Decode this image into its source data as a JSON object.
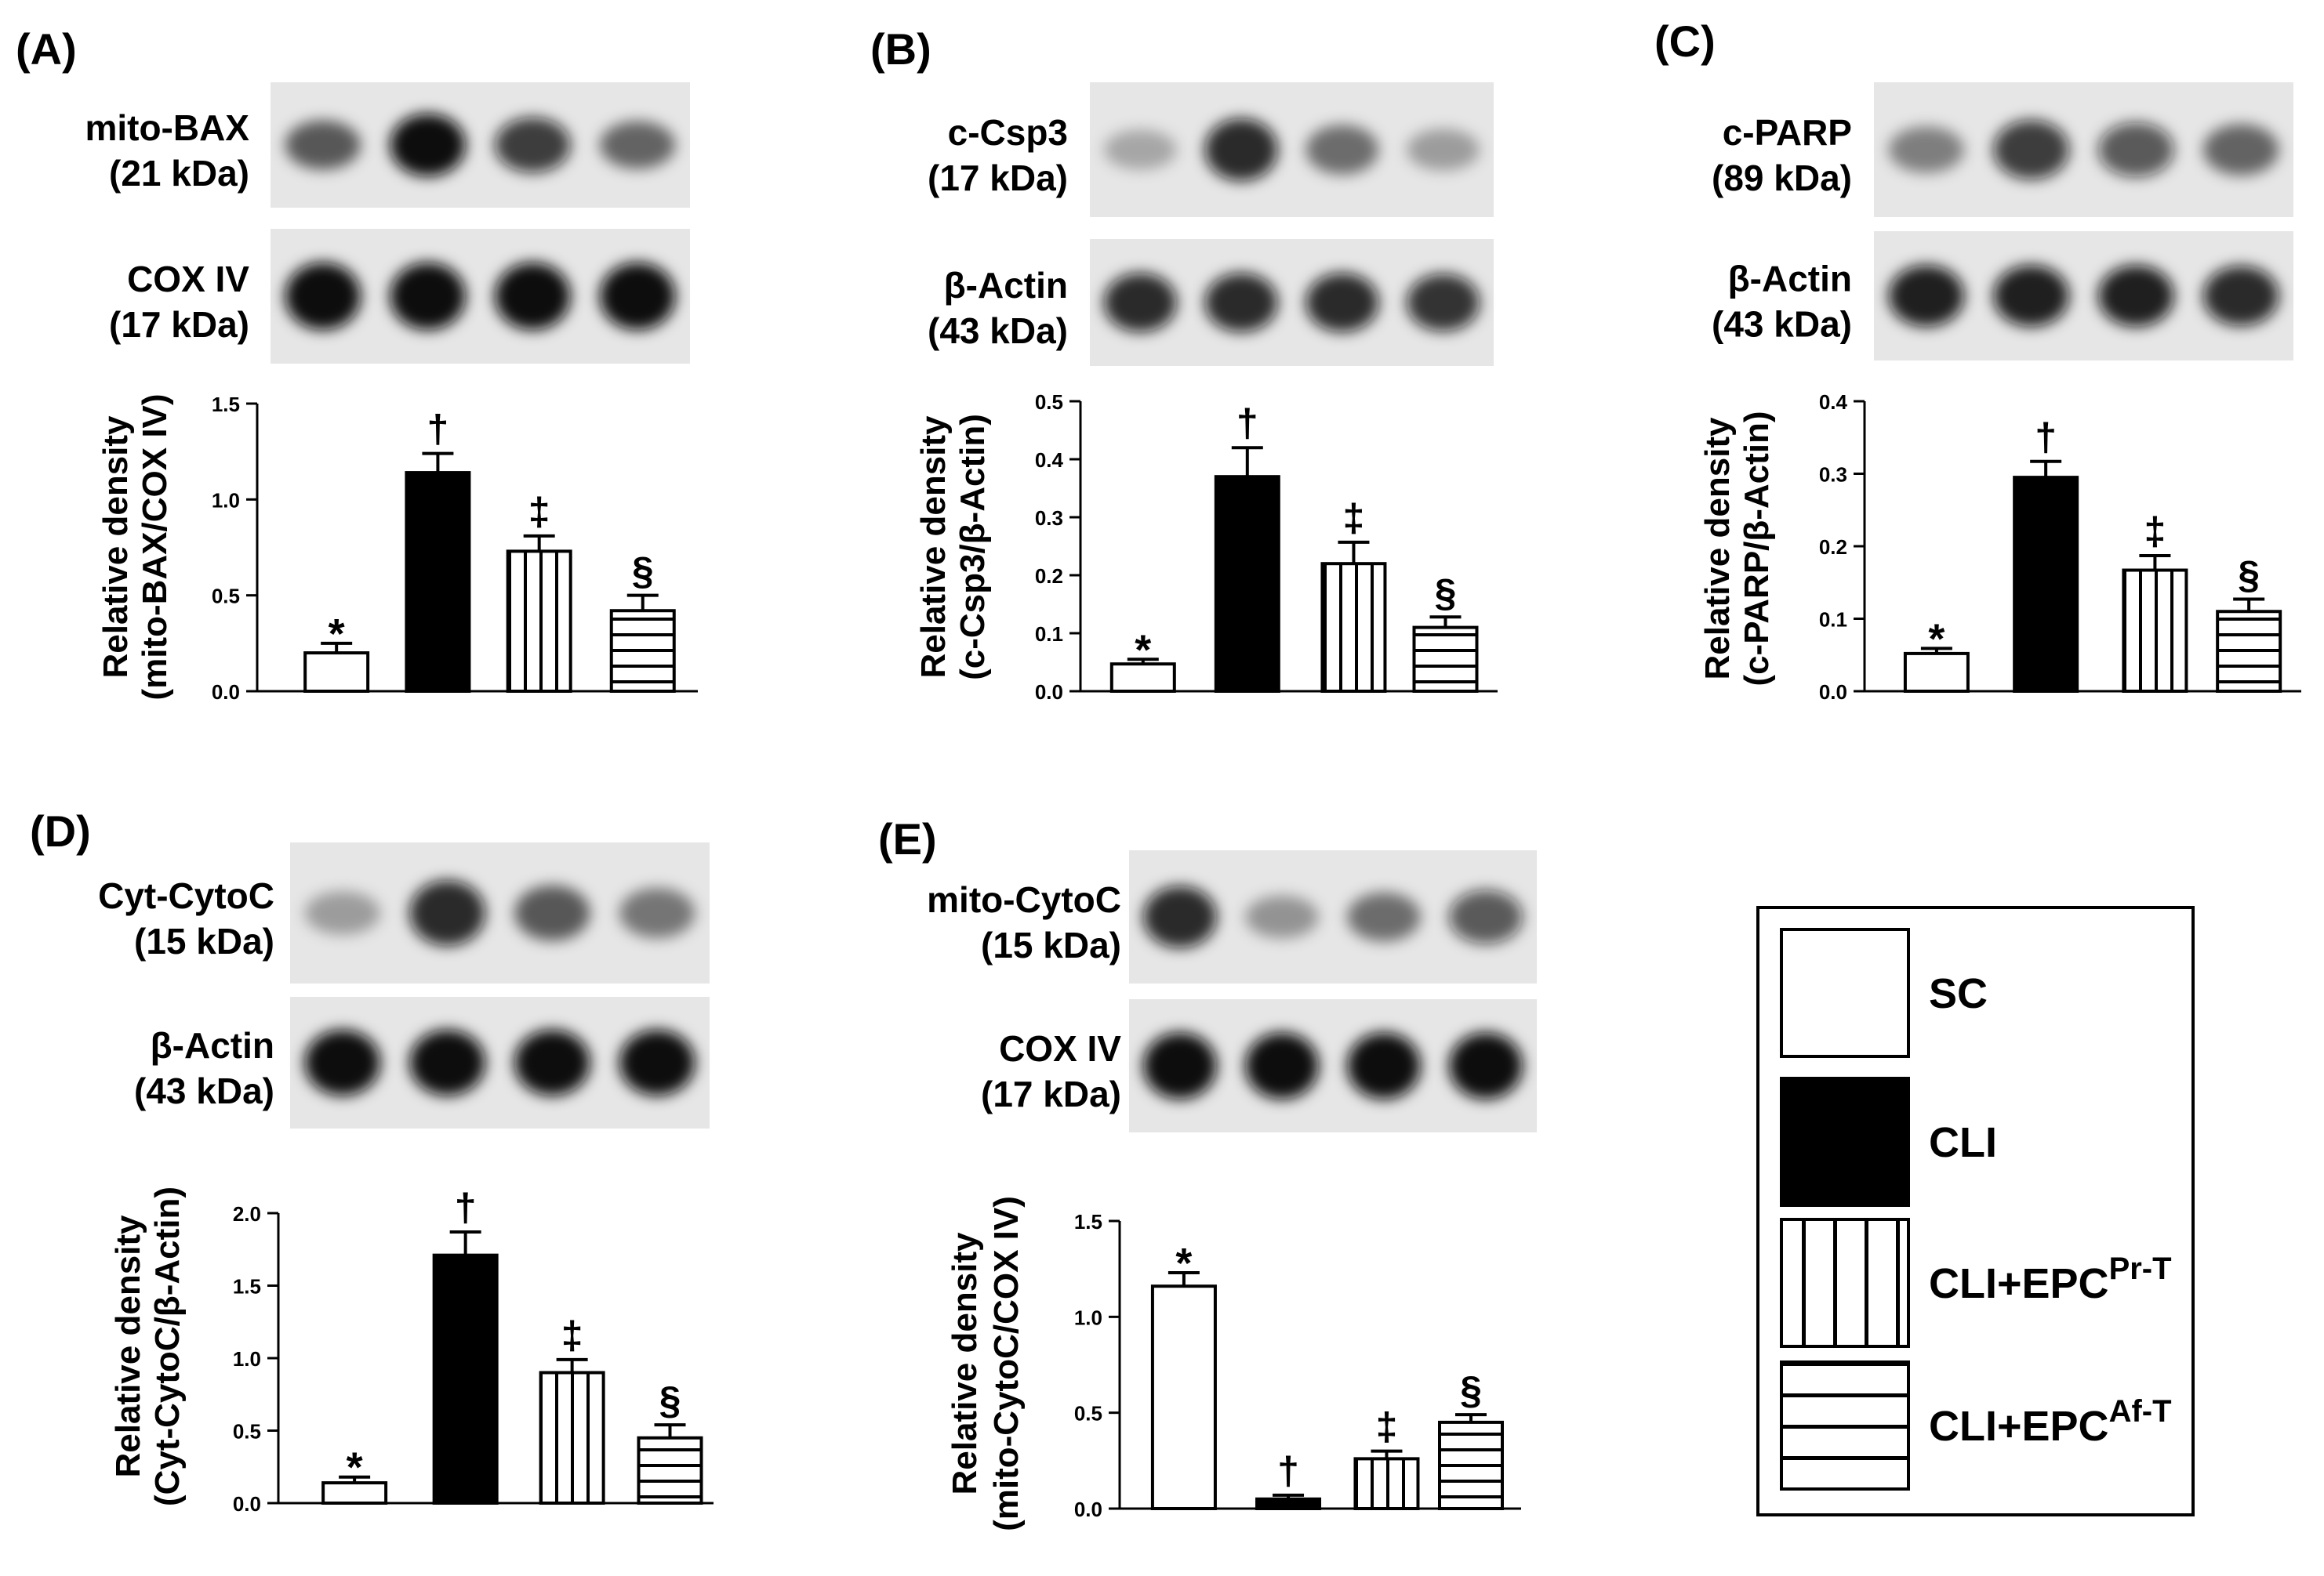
{
  "fill_colors": {
    "white": "#ffffff",
    "black": "#000000",
    "stroke": "#000000",
    "blot_bg": "#e6e6e6",
    "blot_band": "#0a0a0a"
  },
  "legend": {
    "items": [
      {
        "label": "SC",
        "sup": "",
        "pattern": "white"
      },
      {
        "label": "CLI",
        "sup": "",
        "pattern": "black"
      },
      {
        "label": "CLI+EPC",
        "sup": "Pr-T",
        "pattern": "vertical"
      },
      {
        "label": "CLI+EPC",
        "sup": "Af-T",
        "pattern": "horizontal"
      }
    ]
  },
  "chart_data": [
    {
      "panel": "(A)",
      "type": "bar",
      "blots": [
        {
          "label1": "mito-BAX",
          "label2": "(21 kDa)",
          "intensity": [
            0.55,
            1.0,
            0.75,
            0.5
          ]
        },
        {
          "label1": "COX IV",
          "label2": "(17 kDa)",
          "intensity": [
            1.0,
            1.0,
            1.0,
            1.0
          ]
        }
      ],
      "ylabel1": "Relative density",
      "ylabel2": "(mito-BAX/COX IV)",
      "ylim": [
        0,
        1.5
      ],
      "yticks": [
        "0.0",
        "0.5",
        "1.0",
        "1.5"
      ],
      "tick_values": [
        0,
        0.5,
        1.0,
        1.5
      ],
      "categories": [
        "SC",
        "CLI",
        "CLI+EPC Pr-T",
        "CLI+EPC Af-T"
      ],
      "values": [
        0.2,
        1.14,
        0.73,
        0.42
      ],
      "errors": [
        0.05,
        0.1,
        0.08,
        0.08
      ],
      "annotations": [
        "*",
        "†",
        "‡",
        "§"
      ]
    },
    {
      "panel": "(B)",
      "type": "bar",
      "blots": [
        {
          "label1": "c-Csp3",
          "label2": "(17 kDa)",
          "intensity": [
            0.15,
            0.85,
            0.45,
            0.2
          ]
        },
        {
          "label1": "β-Actin",
          "label2": "(43 kDa)",
          "intensity": [
            0.85,
            0.85,
            0.85,
            0.8
          ]
        }
      ],
      "ylabel1": "Relative density",
      "ylabel2": "(c-Csp3/β-Actin)",
      "ylim": [
        0,
        0.5
      ],
      "yticks": [
        "0.0",
        "0.1",
        "0.2",
        "0.3",
        "0.4",
        "0.5"
      ],
      "tick_values": [
        0,
        0.1,
        0.2,
        0.3,
        0.4,
        0.5
      ],
      "categories": [
        "SC",
        "CLI",
        "CLI+EPC Pr-T",
        "CLI+EPC Af-T"
      ],
      "values": [
        0.047,
        0.37,
        0.22,
        0.11
      ],
      "errors": [
        0.008,
        0.05,
        0.037,
        0.018
      ],
      "annotations": [
        "*",
        "†",
        "‡",
        "§"
      ]
    },
    {
      "panel": "(C)",
      "type": "bar",
      "blots": [
        {
          "label1": "c-PARP",
          "label2": "(89 kDa)",
          "intensity": [
            0.35,
            0.75,
            0.6,
            0.5
          ]
        },
        {
          "label1": "β-Actin",
          "label2": "(43 kDa)",
          "intensity": [
            0.9,
            0.9,
            0.9,
            0.85
          ]
        }
      ],
      "ylabel1": "Relative density",
      "ylabel2": "(c-PARP/β-Actin)",
      "ylim": [
        0,
        0.4
      ],
      "yticks": [
        "0.0",
        "0.1",
        "0.2",
        "0.3",
        "0.4"
      ],
      "tick_values": [
        0,
        0.1,
        0.2,
        0.3,
        0.4
      ],
      "categories": [
        "SC",
        "CLI",
        "CLI+EPC Pr-T",
        "CLI+EPC Af-T"
      ],
      "values": [
        0.052,
        0.295,
        0.167,
        0.11
      ],
      "errors": [
        0.007,
        0.022,
        0.02,
        0.017
      ],
      "annotations": [
        "*",
        "†",
        "‡",
        "§"
      ]
    },
    {
      "panel": "(D)",
      "type": "bar",
      "blots": [
        {
          "label1": "Cyt-CytoC",
          "label2": "(15 kDa)",
          "intensity": [
            0.2,
            0.85,
            0.55,
            0.4
          ]
        },
        {
          "label1": "β-Actin",
          "label2": "(43 kDa)",
          "intensity": [
            1.0,
            1.0,
            1.0,
            1.0
          ]
        }
      ],
      "ylabel1": "Relative density",
      "ylabel2": "(Cyt-CytoC/β-Actin)",
      "ylim": [
        0,
        2.0
      ],
      "yticks": [
        "0.0",
        "0.5",
        "1.0",
        "1.5",
        "2.0"
      ],
      "tick_values": [
        0,
        0.5,
        1.0,
        1.5,
        2.0
      ],
      "categories": [
        "SC",
        "CLI",
        "CLI+EPC Pr-T",
        "CLI+EPC Af-T"
      ],
      "values": [
        0.14,
        1.71,
        0.9,
        0.45
      ],
      "errors": [
        0.04,
        0.16,
        0.09,
        0.09
      ],
      "annotations": [
        "*",
        "†",
        "‡",
        "§"
      ]
    },
    {
      "panel": "(E)",
      "type": "bar",
      "blots": [
        {
          "label1": "mito-CytoC",
          "label2": "(15 kDa)",
          "intensity": [
            0.85,
            0.25,
            0.45,
            0.6
          ]
        },
        {
          "label1": "COX IV",
          "label2": "(17 kDa)",
          "intensity": [
            1.0,
            1.0,
            1.0,
            1.0
          ]
        }
      ],
      "ylabel1": "Relative density",
      "ylabel2": "(mito-CytoC/COX IV)",
      "ylim": [
        0,
        1.5
      ],
      "yticks": [
        "0.0",
        "0.5",
        "1.0",
        "1.5"
      ],
      "tick_values": [
        0,
        0.5,
        1.0,
        1.5
      ],
      "categories": [
        "SC",
        "CLI",
        "CLI+EPC Pr-T",
        "CLI+EPC Af-T"
      ],
      "values": [
        1.16,
        0.05,
        0.26,
        0.45
      ],
      "errors": [
        0.07,
        0.02,
        0.04,
        0.04
      ],
      "annotations": [
        "*",
        "†",
        "‡",
        "§"
      ]
    }
  ]
}
